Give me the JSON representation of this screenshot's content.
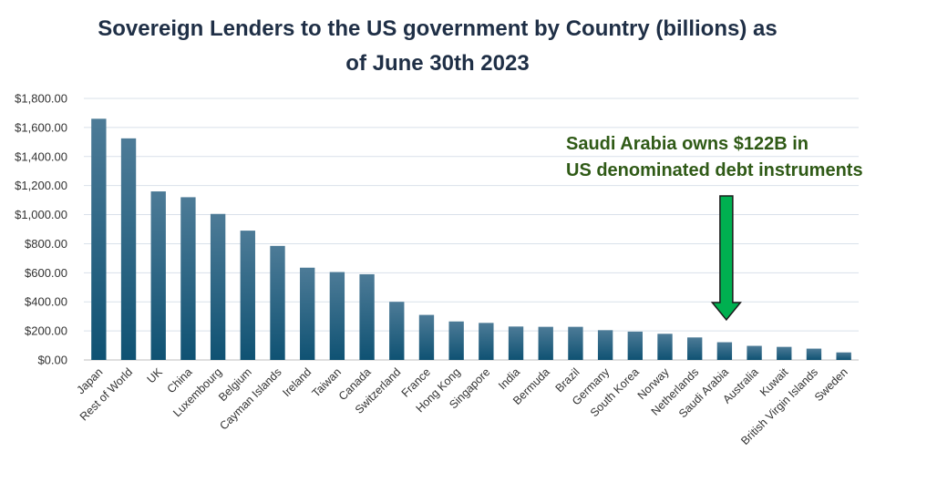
{
  "chart_data": {
    "type": "bar",
    "title": "Sovereign Lenders to the US government by Country (billions) as of June 30th 2023",
    "title_lines": [
      "Sovereign Lenders to the US government by Country (billions) as",
      "of June 30th 2023"
    ],
    "xlabel": "",
    "ylabel": "",
    "ylim": [
      0,
      1800
    ],
    "y_ticks": [
      0,
      200,
      400,
      600,
      800,
      1000,
      1200,
      1400,
      1600,
      1800
    ],
    "y_tick_labels": [
      "$0.00",
      "$200.00",
      "$400.00",
      "$600.00",
      "$800.00",
      "$1,000.00",
      "$1,200.00",
      "$1,400.00",
      "$1,600.00",
      "$1,800.00"
    ],
    "grid": true,
    "legend": "none",
    "categories": [
      "Japan",
      "Rest of World",
      "UK",
      "China",
      "Luxembourg",
      "Belgium",
      "Cayman Islands",
      "Ireland",
      "Taiwan",
      "Canada",
      "Switzerland",
      "France",
      "Hong Kong",
      "Singapore",
      "India",
      "Bermuda",
      "Brazil",
      "Germany",
      "South Korea",
      "Norway",
      "Netherlands",
      "Saudi Arabia",
      "Australia",
      "Kuwait",
      "British Virgin Islands",
      "Sweden"
    ],
    "values": [
      1660,
      1525,
      1160,
      1120,
      1005,
      890,
      785,
      635,
      605,
      590,
      400,
      310,
      265,
      255,
      230,
      228,
      228,
      205,
      195,
      180,
      155,
      122,
      97,
      90,
      78,
      52
    ],
    "bar_color_top": "#4d7b97",
    "bar_color_bottom": "#0f5273",
    "annotation": {
      "lines": [
        "Saudi Arabia owns $122B in",
        "US denominated debt instruments"
      ],
      "color": "#2f5a16",
      "arrow_color": "#00b050",
      "target_category": "Saudi Arabia"
    }
  }
}
